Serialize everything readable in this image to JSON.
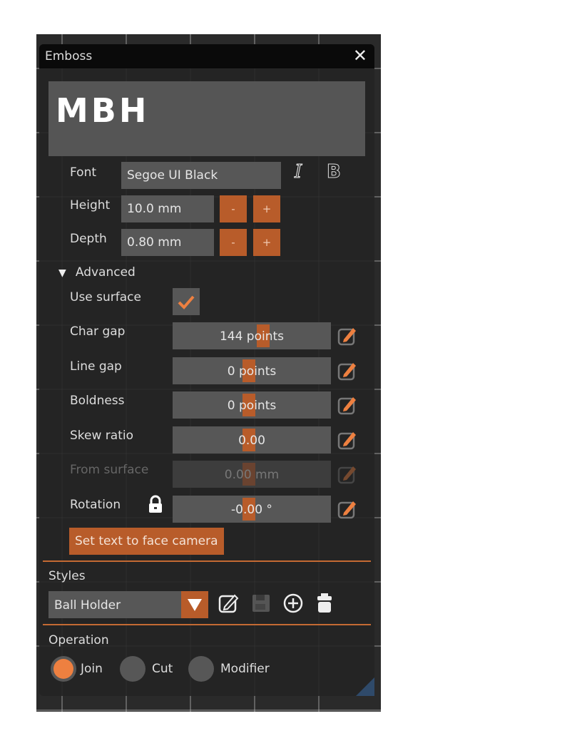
{
  "window": {
    "title": "Emboss",
    "close_icon": "close-icon"
  },
  "preview_text": "MBH",
  "font": {
    "label": "Font",
    "value": "Segoe UI Black",
    "icons": [
      "italic-icon",
      "bold-icon"
    ]
  },
  "height": {
    "label": "Height",
    "value": "10.0 mm",
    "minus": "-",
    "plus": "+"
  },
  "depth": {
    "label": "Depth",
    "value": "0.80 mm",
    "minus": "-",
    "plus": "+"
  },
  "advanced": {
    "label": "Advanced",
    "expanded": true,
    "use_surface": {
      "label": "Use surface",
      "checked": true
    },
    "sliders": [
      {
        "label": "Char gap",
        "value": "144 points",
        "enabled": true,
        "position": 0.6
      },
      {
        "label": "Line gap",
        "value": "0 points",
        "enabled": true,
        "position": 0.5
      },
      {
        "label": "Boldness",
        "value": "0 points",
        "enabled": true,
        "position": 0.5
      },
      {
        "label": "Skew ratio",
        "value": "0.00",
        "enabled": true,
        "position": 0.5
      },
      {
        "label": "From surface",
        "value": "0.00 mm",
        "enabled": false,
        "position": 0.5
      },
      {
        "label": "Rotation",
        "value": "-0.00 °",
        "enabled": true,
        "position": 0.5
      }
    ],
    "rotation_lock_icon": "lock-icon",
    "face_camera_button": "Set text to face camera"
  },
  "styles": {
    "label": "Styles",
    "selected": "Ball Holder",
    "icons": [
      "rename-icon",
      "save-icon",
      "add-icon",
      "delete-icon"
    ]
  },
  "operation": {
    "label": "Operation",
    "options": [
      "Join",
      "Cut",
      "Modifier"
    ],
    "selected": "Join"
  },
  "colors": {
    "accent": "#b85c2a",
    "radio_selected": "#ee8040",
    "panel": "#242424"
  }
}
